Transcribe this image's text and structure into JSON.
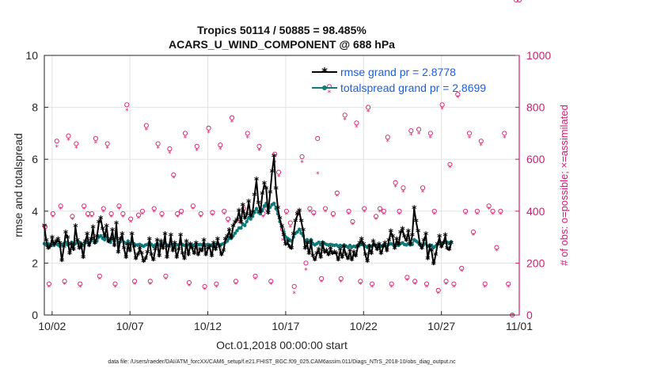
{
  "chart_data": {
    "type": "line",
    "title": [
      "Tropics 50114 / 50885 = 98.485%",
      "ACARS_U_WIND_COMPONENT @ 688 hPa"
    ],
    "xlabel": "Oct.01,2018 00:00:00 start",
    "ylabel": "rmse and totalspread",
    "ylabel_right": "# of obs: o=possible; ×=assimilated",
    "xlim": [
      1.5,
      32
    ],
    "ylim": [
      0,
      10
    ],
    "ylim_right": [
      0,
      1000
    ],
    "x_ticks": [
      2,
      7,
      12,
      17,
      22,
      27,
      32
    ],
    "x_tick_labels": [
      "10/02",
      "10/07",
      "10/12",
      "10/17",
      "10/22",
      "10/27",
      "11/01"
    ],
    "y_ticks": [
      0,
      2,
      4,
      6,
      8,
      10
    ],
    "y_ticks_right": [
      0,
      200,
      400,
      600,
      800,
      1000
    ],
    "grid": true,
    "legend_position": "top-right",
    "footnote": "data file: /Users/raeder/DAI/ATM_forcXX/CAM6_setup/f.e21.FHIST_BGC.f09_025.CAM6assim.011/Diags_NTrS_2018-10/obs_diag_output.nc",
    "x_step_days": 0.125,
    "x_start": 1.5,
    "series": [
      {
        "name": "rmse grand pr = 2.8778",
        "color": "#000000",
        "marker": "*",
        "values": [
          3.42,
          2.85,
          2.55,
          2.62,
          2.95,
          2.7,
          2.8,
          2.9,
          2.75,
          2.08,
          2.6,
          3.15,
          2.95,
          2.35,
          2.7,
          2.5,
          3.4,
          2.85,
          2.55,
          2.7,
          2.2,
          2.8,
          3.1,
          2.65,
          2.9,
          3.35,
          2.75,
          3.0,
          3.55,
          3.7,
          3.3,
          3.0,
          3.4,
          2.8,
          2.9,
          3.25,
          2.65,
          3.5,
          2.4,
          2.9,
          3.1,
          2.55,
          2.2,
          2.7,
          2.45,
          3.1,
          2.6,
          2.15,
          2.3,
          2.55,
          2.35,
          2.05,
          2.15,
          2.4,
          2.9,
          2.3,
          2.1,
          2.5,
          2.85,
          2.25,
          2.8,
          2.55,
          3.1,
          2.2,
          2.6,
          3.05,
          2.45,
          2.75,
          2.2,
          2.5,
          3.05,
          2.35,
          2.15,
          2.8,
          2.3,
          2.7,
          2.55,
          2.35,
          2.75,
          2.3,
          2.5,
          2.45,
          2.85,
          2.3,
          2.55,
          2.6,
          2.25,
          2.75,
          2.5,
          2.9,
          2.6,
          2.3,
          2.45,
          2.9,
          3.0,
          3.25,
          2.95,
          3.4,
          3.55,
          3.65,
          4.0,
          3.55,
          4.2,
          3.7,
          3.85,
          4.35,
          3.8,
          3.95,
          4.6,
          5.2,
          4.3,
          3.95,
          4.65,
          5.05,
          4.85,
          3.9,
          4.7,
          5.5,
          6.1,
          4.85,
          4.1,
          3.7,
          3.4,
          3.05,
          2.7,
          2.8,
          2.6,
          2.55,
          3.1,
          3.6,
          3.85,
          4.0,
          3.6,
          3.25,
          2.55,
          2.75,
          2.35,
          2.8,
          2.25,
          2.1,
          2.35,
          2.5,
          2.2,
          2.75,
          2.4,
          2.45,
          2.3,
          2.55,
          2.35,
          2.4,
          2.35,
          2.1,
          2.5,
          2.2,
          2.6,
          2.3,
          2.15,
          2.45,
          2.1,
          2.4,
          2.25,
          2.6,
          2.75,
          2.9,
          2.7,
          2.3,
          2.05,
          2.6,
          2.35,
          2.8,
          2.65,
          2.5,
          2.7,
          2.35,
          2.6,
          2.75,
          2.45,
          2.85,
          3.2,
          3.0,
          2.55,
          2.9,
          2.7,
          3.15,
          3.3,
          3.0,
          2.85,
          3.2,
          2.7,
          3.05,
          4.1,
          3.6,
          3.2,
          2.7,
          2.55,
          2.85,
          3.1,
          2.15,
          2.6,
          2.45,
          1.95,
          2.3,
          2.7,
          3.0,
          2.6,
          2.75,
          3.05,
          2.55,
          2.5,
          2.75
        ]
      },
      {
        "name": "totalspread grand pr = 2.8699",
        "color": "#0f7a78",
        "marker": "o",
        "values": [
          2.75,
          2.7,
          2.75,
          2.7,
          2.72,
          2.68,
          2.78,
          2.7,
          2.65,
          2.72,
          2.75,
          2.8,
          2.7,
          2.75,
          2.8,
          2.7,
          2.75,
          2.85,
          2.8,
          2.72,
          2.68,
          2.78,
          2.8,
          2.75,
          2.85,
          2.95,
          2.8,
          2.85,
          3.0,
          3.05,
          2.95,
          2.9,
          3.0,
          2.85,
          2.8,
          2.95,
          2.85,
          3.0,
          2.8,
          2.82,
          2.9,
          2.8,
          2.75,
          2.85,
          2.72,
          2.8,
          2.75,
          2.7,
          2.7,
          2.72,
          2.68,
          2.65,
          2.7,
          2.72,
          2.8,
          2.72,
          2.65,
          2.7,
          2.75,
          2.7,
          2.75,
          2.72,
          2.8,
          2.7,
          2.68,
          2.75,
          2.7,
          2.72,
          2.7,
          2.7,
          2.75,
          2.72,
          2.68,
          2.72,
          2.7,
          2.72,
          2.7,
          2.68,
          2.72,
          2.7,
          2.72,
          2.7,
          2.75,
          2.7,
          2.72,
          2.7,
          2.68,
          2.7,
          2.72,
          2.75,
          2.7,
          2.72,
          2.75,
          2.8,
          2.85,
          2.95,
          2.95,
          3.05,
          3.15,
          3.25,
          3.35,
          3.35,
          3.5,
          3.45,
          3.6,
          3.75,
          3.7,
          3.8,
          3.95,
          4.1,
          3.95,
          3.9,
          4.05,
          4.2,
          4.3,
          4.0,
          4.15,
          4.25,
          4.3,
          4.1,
          3.9,
          3.6,
          3.4,
          3.2,
          3.0,
          2.95,
          2.9,
          2.85,
          3.0,
          3.15,
          3.2,
          3.3,
          3.15,
          3.05,
          2.85,
          2.9,
          2.8,
          2.9,
          2.75,
          2.7,
          2.75,
          2.8,
          2.7,
          2.8,
          2.75,
          2.72,
          2.7,
          2.72,
          2.7,
          2.68,
          2.7,
          2.65,
          2.68,
          2.65,
          2.7,
          2.65,
          2.62,
          2.68,
          2.62,
          2.65,
          2.62,
          2.68,
          2.7,
          2.72,
          2.7,
          2.65,
          2.6,
          2.68,
          2.65,
          2.7,
          2.68,
          2.65,
          2.7,
          2.65,
          2.68,
          2.7,
          2.65,
          2.72,
          2.75,
          2.72,
          2.68,
          2.7,
          2.68,
          2.75,
          2.78,
          2.72,
          2.7,
          2.75,
          2.7,
          2.72,
          2.9,
          2.85,
          2.8,
          2.7,
          2.68,
          2.72,
          2.75,
          2.65,
          2.7,
          2.68,
          2.6,
          2.65,
          2.72,
          2.8,
          2.75,
          2.78,
          2.85,
          2.8,
          2.75,
          2.82
        ]
      }
    ],
    "obs_counts": {
      "x": [
        1.55,
        1.8,
        2.05,
        2.3,
        2.55,
        2.8,
        3.05,
        3.3,
        3.55,
        3.8,
        4.05,
        4.3,
        4.55,
        4.8,
        5.05,
        5.3,
        5.55,
        5.8,
        6.05,
        6.3,
        6.55,
        6.8,
        7.05,
        7.3,
        7.55,
        7.8,
        8.05,
        8.3,
        8.55,
        8.8,
        9.05,
        9.3,
        9.55,
        9.8,
        10.05,
        10.3,
        10.55,
        10.8,
        11.05,
        11.3,
        11.55,
        11.8,
        12.05,
        12.3,
        12.55,
        12.8,
        13.05,
        13.3,
        13.55,
        13.8,
        14.05,
        14.3,
        14.55,
        14.8,
        15.05,
        15.3,
        15.55,
        15.8,
        16.05,
        16.3,
        16.55,
        16.8,
        17.05,
        17.3,
        17.55,
        17.8,
        18.05,
        18.3,
        18.55,
        18.8,
        19.05,
        19.3,
        19.55,
        19.8,
        20.05,
        20.3,
        20.55,
        20.8,
        21.05,
        21.3,
        21.55,
        21.8,
        22.05,
        22.3,
        22.55,
        22.8,
        23.05,
        23.3,
        23.55,
        23.8,
        24.05,
        24.3,
        24.55,
        24.8,
        25.05,
        25.3,
        25.55,
        25.8,
        26.05,
        26.3,
        26.55,
        26.8,
        27.05,
        27.3,
        27.55,
        27.8,
        28.05,
        28.3,
        28.55,
        28.8,
        29.05,
        29.3,
        29.55,
        29.8,
        30.05,
        30.3,
        30.55,
        30.8,
        31.05,
        31.3,
        31.55,
        31.8,
        32.0
      ],
      "possible": [
        340,
        120,
        390,
        670,
        420,
        130,
        690,
        380,
        660,
        120,
        420,
        390,
        390,
        680,
        150,
        410,
        660,
        390,
        120,
        420,
        390,
        810,
        370,
        130,
        385,
        400,
        730,
        130,
        410,
        660,
        390,
        150,
        640,
        540,
        390,
        400,
        700,
        125,
        420,
        650,
        390,
        110,
        720,
        395,
        120,
        655,
        400,
        370,
        760,
        130,
        365,
        410,
        700,
        390,
        150,
        650,
        390,
        410,
        130,
        620,
        550,
        330,
        400,
        355,
        110,
        395,
        610,
        200,
        410,
        395,
        680,
        140,
        410,
        880,
        390,
        470,
        140,
        770,
        400,
        360,
        740,
        130,
        410,
        800,
        120,
        380,
        410,
        400,
        685,
        120,
        510,
        400,
        490,
        145,
        710,
        130,
        715,
        490,
        120,
        700,
        400,
        95,
        810,
        130,
        580,
        120,
        850,
        180,
        400,
        700,
        320,
        400,
        670,
        120,
        420,
        400,
        260,
        400,
        700,
        120,
        0
      ],
      "assimilated": [
        330,
        110,
        380,
        650,
        410,
        120,
        675,
        370,
        645,
        110,
        410,
        380,
        380,
        665,
        140,
        400,
        645,
        380,
        110,
        410,
        380,
        790,
        360,
        120,
        375,
        390,
        715,
        120,
        400,
        645,
        380,
        140,
        625,
        530,
        380,
        390,
        685,
        115,
        410,
        635,
        380,
        100,
        705,
        385,
        110,
        640,
        390,
        360,
        745,
        120,
        355,
        400,
        685,
        380,
        140,
        635,
        380,
        400,
        120,
        590,
        535,
        290,
        390,
        340,
        85,
        385,
        590,
        175,
        400,
        385,
        545,
        130,
        400,
        860,
        380,
        460,
        130,
        755,
        390,
        350,
        725,
        120,
        400,
        785,
        110,
        370,
        400,
        390,
        670,
        110,
        495,
        390,
        475,
        135,
        695,
        120,
        700,
        475,
        110,
        685,
        390,
        85,
        795,
        120,
        570,
        110,
        840,
        170,
        390,
        685,
        310,
        390,
        655,
        110,
        410,
        390,
        250,
        390,
        685,
        110,
        0
      ]
    }
  }
}
